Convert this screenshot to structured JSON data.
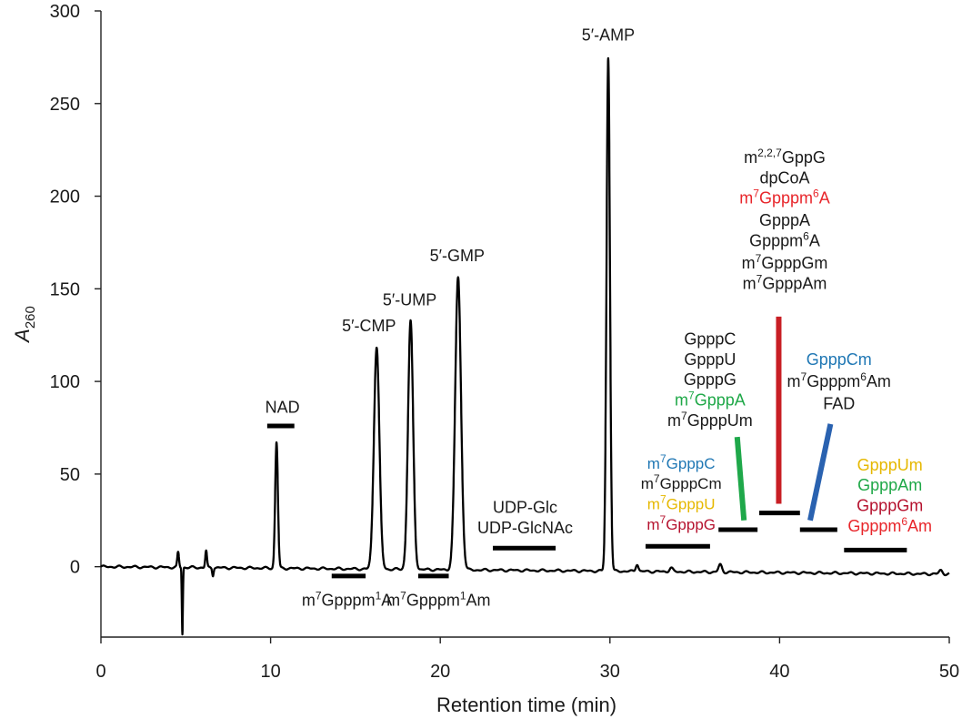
{
  "chart_data": {
    "type": "line",
    "title": "",
    "xlabel": "Retention time (min)",
    "ylabel_italic": "A",
    "ylabel_sub": "260",
    "xlim": [
      0,
      50
    ],
    "ylim": [
      -38,
      300
    ],
    "xticks": [
      0,
      10,
      20,
      30,
      40,
      50
    ],
    "yticks": [
      0,
      50,
      100,
      150,
      200,
      250,
      300
    ],
    "colors": {
      "trace": "#000000",
      "black": "#1a1a1a",
      "blue": "#1f77b4",
      "green": "#1fa848",
      "red": "#e8262b",
      "crimson": "#b5122e",
      "yellow": "#e6b800",
      "green_bar": "#1fa84a",
      "red_bar": "#c81e24",
      "blue_bar": "#2a62b0"
    },
    "baseline": {
      "start": 0,
      "end": -4
    },
    "peaks": [
      {
        "name": "5′-AMP",
        "rt": 29.9,
        "height": 277,
        "width": 0.1
      },
      {
        "name": "5′-GMP",
        "rt": 21.05,
        "height": 158,
        "width": 0.17
      },
      {
        "name": "5′-UMP",
        "rt": 18.25,
        "height": 134,
        "width": 0.15
      },
      {
        "name": "5′-CMP",
        "rt": 16.25,
        "height": 120,
        "width": 0.16
      },
      {
        "name": "NAD",
        "rt": 10.35,
        "height": 68,
        "width": 0.08
      },
      {
        "name": "",
        "rt": 4.55,
        "height": 8,
        "width": 0.05
      },
      {
        "name": "",
        "rt": 4.8,
        "height": -36,
        "width": 0.03
      },
      {
        "name": "",
        "rt": 6.2,
        "height": 9,
        "width": 0.05
      },
      {
        "name": "",
        "rt": 6.6,
        "height": -4,
        "width": 0.04
      },
      {
        "name": "",
        "rt": 31.6,
        "height": 4,
        "width": 0.08
      },
      {
        "name": "",
        "rt": 33.6,
        "height": 2,
        "width": 0.1
      },
      {
        "name": "",
        "rt": 36.5,
        "height": 4,
        "width": 0.1
      },
      {
        "name": "",
        "rt": 49.5,
        "height": 2,
        "width": 0.1
      }
    ],
    "peak_labels": [
      {
        "text": "5′-AMP",
        "x": 29.9,
        "y": 284
      },
      {
        "text": "5′-GMP",
        "x": 21.0,
        "y": 165
      },
      {
        "text": "5′-UMP",
        "x": 18.2,
        "y": 141
      },
      {
        "text": "5′-CMP",
        "x": 15.8,
        "y": 127
      },
      {
        "text": "NAD",
        "x": 10.7,
        "y": 83
      }
    ],
    "range_bars": [
      {
        "name": "NAD",
        "x1": 9.8,
        "x2": 11.4,
        "y": 76
      },
      {
        "name": "m7Gpppm1A",
        "x1": 13.6,
        "x2": 15.6,
        "y": -5
      },
      {
        "name": "m7Gpppm1Am",
        "x1": 18.7,
        "x2": 20.5,
        "y": -5
      },
      {
        "name": "UDP-Glc / UDP-GlcNAc",
        "x1": 23.1,
        "x2": 26.8,
        "y": 10
      },
      {
        "name": "group-m7GpppC",
        "x1": 32.1,
        "x2": 35.9,
        "y": 11
      },
      {
        "name": "group-GpppC",
        "x1": 36.4,
        "x2": 38.7,
        "y": 20
      },
      {
        "name": "group-m227GppG",
        "x1": 38.8,
        "x2": 41.2,
        "y": 29
      },
      {
        "name": "group-GpppCm",
        "x1": 41.2,
        "x2": 43.4,
        "y": 20
      },
      {
        "name": "group-GpppUm",
        "x1": 43.8,
        "x2": 47.5,
        "y": 9
      }
    ],
    "leader_lines": [
      {
        "color": "green_bar",
        "x1": 37.5,
        "y1": 70,
        "x2": 37.9,
        "y2": 25
      },
      {
        "color": "red_bar",
        "x1": 39.95,
        "y1": 135,
        "x2": 39.95,
        "y2": 34
      },
      {
        "color": "blue_bar",
        "x1": 43.0,
        "y1": 77,
        "x2": 41.8,
        "y2": 25
      }
    ],
    "annotations": [
      {
        "parts": [
          {
            "t": "UDP-Glc"
          }
        ],
        "x": 25.0,
        "y": 29,
        "color": "black"
      },
      {
        "parts": [
          {
            "t": "UDP-GlcNAc"
          }
        ],
        "x": 25.0,
        "y": 18,
        "color": "black"
      },
      {
        "parts": [
          {
            "t": "m"
          },
          {
            "t": "7",
            "sup": true
          },
          {
            "t": "Gpppm"
          },
          {
            "t": "1",
            "sup": true
          },
          {
            "t": "A"
          }
        ],
        "x": 14.5,
        "y": -21,
        "color": "black"
      },
      {
        "parts": [
          {
            "t": "m"
          },
          {
            "t": "7",
            "sup": true
          },
          {
            "t": "Gpppm"
          },
          {
            "t": "1",
            "sup": true
          },
          {
            "t": "Am"
          }
        ],
        "x": 19.9,
        "y": -21,
        "color": "black"
      },
      {
        "parts": [
          {
            "t": "m"
          },
          {
            "t": "7",
            "sup": true
          },
          {
            "t": "GpppC"
          }
        ],
        "x": 34.2,
        "y": 53,
        "color": "blue",
        "small": true
      },
      {
        "parts": [
          {
            "t": "m"
          },
          {
            "t": "7",
            "sup": true
          },
          {
            "t": "GpppCm"
          }
        ],
        "x": 34.2,
        "y": 42,
        "color": "black",
        "small": true
      },
      {
        "parts": [
          {
            "t": "m"
          },
          {
            "t": "7",
            "sup": true
          },
          {
            "t": "GpppU"
          }
        ],
        "x": 34.2,
        "y": 31,
        "color": "yellow",
        "small": true
      },
      {
        "parts": [
          {
            "t": "m"
          },
          {
            "t": "7",
            "sup": true
          },
          {
            "t": "GpppG"
          }
        ],
        "x": 34.2,
        "y": 20,
        "color": "crimson",
        "small": true
      },
      {
        "parts": [
          {
            "t": "GpppC"
          }
        ],
        "x": 35.9,
        "y": 120,
        "color": "black"
      },
      {
        "parts": [
          {
            "t": "GpppU"
          }
        ],
        "x": 35.9,
        "y": 109,
        "color": "black"
      },
      {
        "parts": [
          {
            "t": "GpppG"
          }
        ],
        "x": 35.9,
        "y": 98,
        "color": "black"
      },
      {
        "parts": [
          {
            "t": "m"
          },
          {
            "t": "7",
            "sup": true
          },
          {
            "t": "GpppA"
          }
        ],
        "x": 35.9,
        "y": 87,
        "color": "green"
      },
      {
        "parts": [
          {
            "t": "m"
          },
          {
            "t": "7",
            "sup": true
          },
          {
            "t": "GpppUm"
          }
        ],
        "x": 35.9,
        "y": 76,
        "color": "black"
      },
      {
        "parts": [
          {
            "t": "m"
          },
          {
            "t": "2,2,7",
            "sup": true
          },
          {
            "t": "GppG"
          }
        ],
        "x": 40.3,
        "y": 218,
        "color": "black"
      },
      {
        "parts": [
          {
            "t": "dpCoA"
          }
        ],
        "x": 40.3,
        "y": 207,
        "color": "black"
      },
      {
        "parts": [
          {
            "t": "m"
          },
          {
            "t": "7",
            "sup": true
          },
          {
            "t": "Gpppm"
          },
          {
            "t": "6",
            "sup": true
          },
          {
            "t": "A"
          }
        ],
        "x": 40.3,
        "y": 196,
        "color": "red"
      },
      {
        "parts": [
          {
            "t": "GpppA"
          }
        ],
        "x": 40.3,
        "y": 184,
        "color": "black"
      },
      {
        "parts": [
          {
            "t": "Gpppm"
          },
          {
            "t": "6",
            "sup": true
          },
          {
            "t": "A"
          }
        ],
        "x": 40.3,
        "y": 173,
        "color": "black"
      },
      {
        "parts": [
          {
            "t": "m"
          },
          {
            "t": "7",
            "sup": true
          },
          {
            "t": "GpppGm"
          }
        ],
        "x": 40.3,
        "y": 161,
        "color": "black"
      },
      {
        "parts": [
          {
            "t": "m"
          },
          {
            "t": "7",
            "sup": true
          },
          {
            "t": "GpppAm"
          }
        ],
        "x": 40.3,
        "y": 150,
        "color": "black"
      },
      {
        "parts": [
          {
            "t": "GpppCm"
          }
        ],
        "x": 43.5,
        "y": 109,
        "color": "blue"
      },
      {
        "parts": [
          {
            "t": "m"
          },
          {
            "t": "7",
            "sup": true
          },
          {
            "t": "Gpppm"
          },
          {
            "t": "6",
            "sup": true
          },
          {
            "t": "Am"
          }
        ],
        "x": 43.5,
        "y": 97,
        "color": "black"
      },
      {
        "parts": [
          {
            "t": "FAD"
          }
        ],
        "x": 43.5,
        "y": 85,
        "color": "black"
      },
      {
        "parts": [
          {
            "t": "GpppUm"
          }
        ],
        "x": 46.5,
        "y": 52,
        "color": "yellow"
      },
      {
        "parts": [
          {
            "t": "GpppAm"
          }
        ],
        "x": 46.5,
        "y": 41,
        "color": "green"
      },
      {
        "parts": [
          {
            "t": "GpppGm"
          }
        ],
        "x": 46.5,
        "y": 30,
        "color": "crimson"
      },
      {
        "parts": [
          {
            "t": "Gpppm"
          },
          {
            "t": "6",
            "sup": true
          },
          {
            "t": "Am"
          }
        ],
        "x": 46.5,
        "y": 19,
        "color": "red"
      }
    ]
  }
}
